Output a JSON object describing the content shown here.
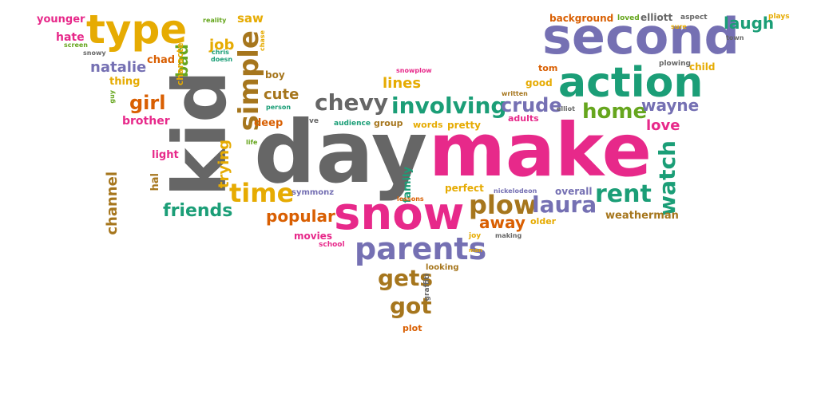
{
  "palette": {
    "gray": "#666666",
    "pink": "#e7298a",
    "green": "#1b9e77",
    "purple": "#7570b3",
    "gold": "#e6ab02",
    "brown": "#a6761d",
    "orange": "#d95f02",
    "lime": "#66a61e"
  },
  "words": [
    {
      "text": "day",
      "color": "gray"
    },
    {
      "text": "make",
      "color": "pink"
    },
    {
      "text": "kid",
      "color": "gray"
    },
    {
      "text": "second",
      "color": "purple"
    },
    {
      "text": "action",
      "color": "green"
    },
    {
      "text": "snow",
      "color": "pink"
    },
    {
      "text": "type",
      "color": "gold"
    },
    {
      "text": "parents",
      "color": "purple"
    },
    {
      "text": "plow",
      "color": "brown"
    },
    {
      "text": "involving",
      "color": "green"
    },
    {
      "text": "chevy",
      "color": "gray"
    },
    {
      "text": "simple",
      "color": "brown"
    },
    {
      "text": "laura",
      "color": "purple"
    },
    {
      "text": "rent",
      "color": "green"
    },
    {
      "text": "watch",
      "color": "green"
    },
    {
      "text": "time",
      "color": "gold"
    },
    {
      "text": "home",
      "color": "lime"
    },
    {
      "text": "crude",
      "color": "purple"
    },
    {
      "text": "gets",
      "color": "brown"
    },
    {
      "text": "got",
      "color": "brown"
    },
    {
      "text": "laugh",
      "color": "green"
    },
    {
      "text": "girl",
      "color": "orange"
    },
    {
      "text": "wayne",
      "color": "purple"
    },
    {
      "text": "friends",
      "color": "green"
    },
    {
      "text": "popular",
      "color": "orange"
    },
    {
      "text": "away",
      "color": "orange"
    },
    {
      "text": "lines",
      "color": "gold"
    },
    {
      "text": "cute",
      "color": "brown"
    },
    {
      "text": "love",
      "color": "pink"
    },
    {
      "text": "natalie",
      "color": "purple"
    },
    {
      "text": "bad",
      "color": "lime"
    },
    {
      "text": "channel",
      "color": "brown"
    },
    {
      "text": "trying",
      "color": "gold"
    },
    {
      "text": "job",
      "color": "gold"
    },
    {
      "text": "saw",
      "color": "gold"
    },
    {
      "text": "weatherman",
      "color": "brown"
    },
    {
      "text": "family",
      "color": "green"
    },
    {
      "text": "brother",
      "color": "pink"
    },
    {
      "text": "hate",
      "color": "pink"
    },
    {
      "text": "younger",
      "color": "pink"
    },
    {
      "text": "chad",
      "color": "orange"
    },
    {
      "text": "thing",
      "color": "gold"
    },
    {
      "text": "character",
      "color": "gold"
    },
    {
      "text": "light",
      "color": "pink"
    },
    {
      "text": "hal",
      "color": "brown"
    },
    {
      "text": "deep",
      "color": "orange"
    },
    {
      "text": "boy",
      "color": "brown"
    },
    {
      "text": "perfect",
      "color": "gold"
    },
    {
      "text": "movies",
      "color": "pink"
    },
    {
      "text": "good",
      "color": "gold"
    },
    {
      "text": "pretty",
      "color": "gold"
    },
    {
      "text": "words",
      "color": "gold"
    },
    {
      "text": "group",
      "color": "brown"
    },
    {
      "text": "adults",
      "color": "pink"
    },
    {
      "text": "overall",
      "color": "purple"
    },
    {
      "text": "older",
      "color": "gold"
    },
    {
      "text": "child",
      "color": "gold"
    },
    {
      "text": "tom",
      "color": "orange"
    },
    {
      "text": "background",
      "color": "orange"
    },
    {
      "text": "elliott",
      "color": "gray"
    },
    {
      "text": "loved",
      "color": "lime"
    },
    {
      "text": "aspect",
      "color": "gray"
    },
    {
      "text": "sure",
      "color": "gold"
    },
    {
      "text": "plays",
      "color": "gold"
    },
    {
      "text": "town",
      "color": "gray"
    },
    {
      "text": "plowing",
      "color": "gray"
    },
    {
      "text": "snowplow",
      "color": "pink"
    },
    {
      "text": "written",
      "color": "brown"
    },
    {
      "text": "elliot",
      "color": "gray"
    },
    {
      "text": "symmonz",
      "color": "purple"
    },
    {
      "text": "ve",
      "color": "gray"
    },
    {
      "text": "audience",
      "color": "green"
    },
    {
      "text": "life",
      "color": "lime"
    },
    {
      "text": "person",
      "color": "green"
    },
    {
      "text": "chase",
      "color": "gold"
    },
    {
      "text": "reality",
      "color": "lime"
    },
    {
      "text": "screen",
      "color": "lime"
    },
    {
      "text": "snowy",
      "color": "gray"
    },
    {
      "text": "guy",
      "color": "lime"
    },
    {
      "text": "chris",
      "color": "green"
    },
    {
      "text": "doesn",
      "color": "green"
    },
    {
      "text": "lessons",
      "color": "orange"
    },
    {
      "text": "nickelodeon",
      "color": "purple"
    },
    {
      "text": "school",
      "color": "pink"
    },
    {
      "text": "joy",
      "color": "gold"
    },
    {
      "text": "making",
      "color": "gray"
    },
    {
      "text": "man",
      "color": "gold"
    },
    {
      "text": "looking",
      "color": "brown"
    },
    {
      "text": "graffiti",
      "color": "gray"
    },
    {
      "text": "plot",
      "color": "orange"
    }
  ]
}
